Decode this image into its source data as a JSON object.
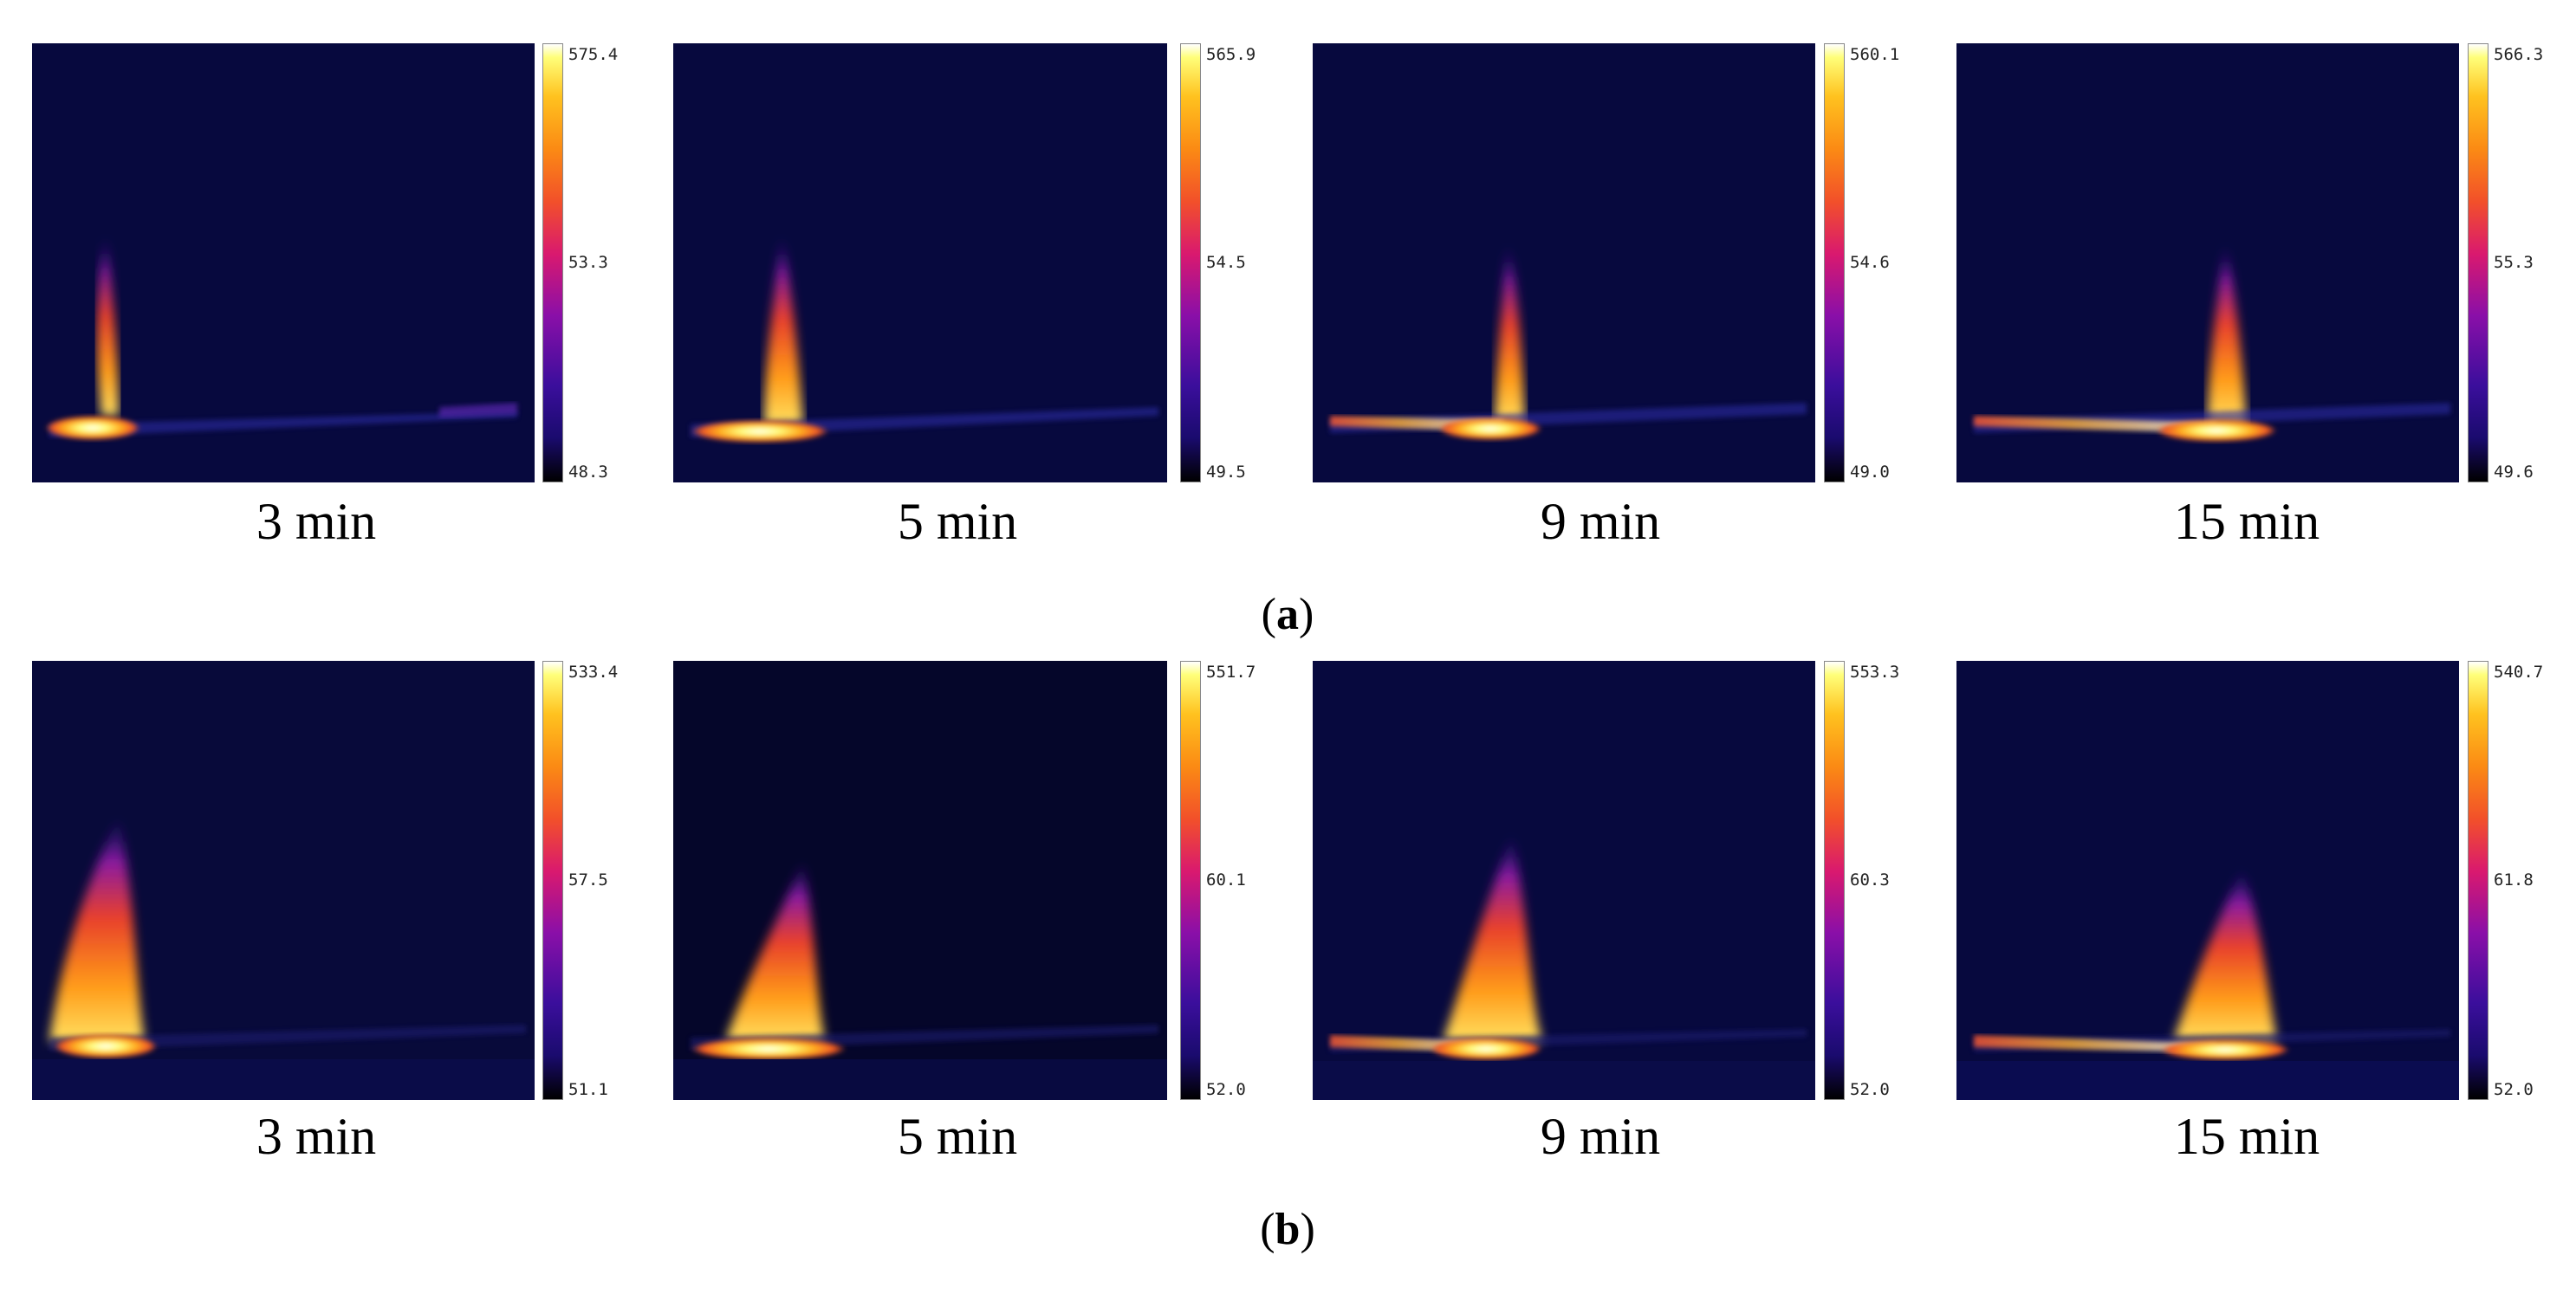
{
  "rows": [
    {
      "label": "a",
      "panels": [
        {
          "time": "3 min",
          "cmax": "575.4",
          "cmid": "53.3",
          "cmin": "48.3"
        },
        {
          "time": "5 min",
          "cmax": "565.9",
          "cmid": "54.5",
          "cmin": "49.5"
        },
        {
          "time": "9 min",
          "cmax": "560.1",
          "cmid": "54.6",
          "cmin": "49.0"
        },
        {
          "time": "15 min",
          "cmax": "566.3",
          "cmid": "55.3",
          "cmin": "49.6"
        }
      ]
    },
    {
      "label": "b",
      "panels": [
        {
          "time": "3 min",
          "cmax": "533.4",
          "cmid": "57.5",
          "cmin": "51.1"
        },
        {
          "time": "5 min",
          "cmax": "551.7",
          "cmid": "60.1",
          "cmin": "52.0"
        },
        {
          "time": "9 min",
          "cmax": "553.3",
          "cmid": "60.3",
          "cmin": "52.0"
        },
        {
          "time": "15 min",
          "cmax": "540.7",
          "cmid": "61.8",
          "cmin": "52.0"
        }
      ]
    }
  ]
}
